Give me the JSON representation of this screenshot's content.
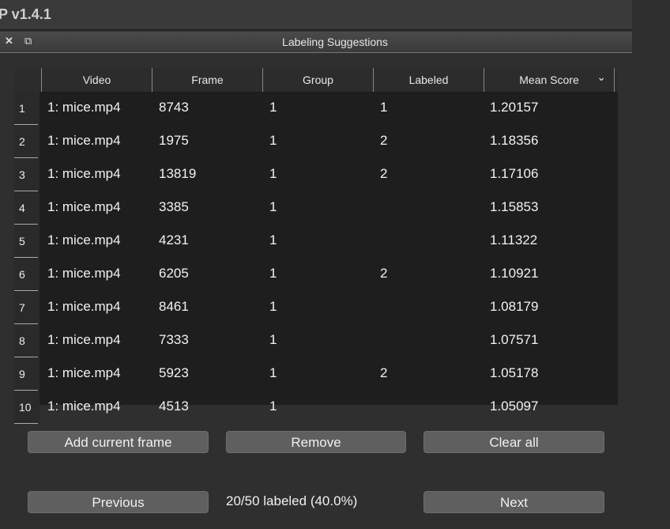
{
  "app": {
    "title": "P v1.4.1"
  },
  "dialog": {
    "title": "Labeling Suggestions"
  },
  "table": {
    "columns": [
      "Video",
      "Frame",
      "Group",
      "Labeled",
      "Mean Score"
    ],
    "sort_icon": "chevron-down-icon",
    "rows": [
      [
        "1",
        "1: mice.mp4",
        "8743",
        "1",
        "1",
        "1.20157"
      ],
      [
        "2",
        "1: mice.mp4",
        "1975",
        "1",
        "2",
        "1.18356"
      ],
      [
        "3",
        "1: mice.mp4",
        "13819",
        "1",
        "2",
        "1.17106"
      ],
      [
        "4",
        "1: mice.mp4",
        "3385",
        "1",
        "",
        "1.15853"
      ],
      [
        "5",
        "1: mice.mp4",
        "4231",
        "1",
        "",
        "1.11322"
      ],
      [
        "6",
        "1: mice.mp4",
        "6205",
        "1",
        "2",
        "1.10921"
      ],
      [
        "7",
        "1: mice.mp4",
        "8461",
        "1",
        "",
        "1.08179"
      ],
      [
        "8",
        "1: mice.mp4",
        "7333",
        "1",
        "",
        "1.07571"
      ],
      [
        "9",
        "1: mice.mp4",
        "5923",
        "1",
        "2",
        "1.05178"
      ],
      [
        "10",
        "1: mice.mp4",
        "4513",
        "1",
        "",
        "1.05097"
      ]
    ]
  },
  "buttons": {
    "add": "Add current frame",
    "remove": "Remove",
    "clear": "Clear all",
    "previous": "Previous",
    "next": "Next"
  },
  "status": "20/50 labeled (40.0%)"
}
